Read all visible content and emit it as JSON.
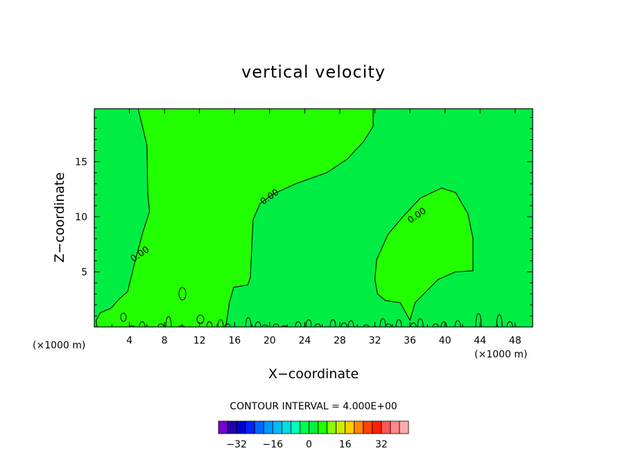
{
  "chart_data": {
    "type": "contour",
    "title": "vertical velocity",
    "xlabel": "X−coordinate",
    "ylabel": "Z−coordinate",
    "x_unit": "(×1000 m)",
    "xlim": [
      0,
      50
    ],
    "ylim": [
      0,
      19.8
    ],
    "x_ticks": [
      4,
      8,
      12,
      16,
      20,
      24,
      28,
      32,
      36,
      40,
      44,
      48
    ],
    "y_ticks": [
      5,
      10,
      15
    ],
    "contour_interval_text": "CONTOUR INTERVAL = 4.000E+00",
    "contour_label_text": "0.00",
    "contour_labels": [
      {
        "x": 5.2,
        "y": 6.6,
        "text": "0.00"
      },
      {
        "x": 20.0,
        "y": 11.8,
        "text": "0.00"
      },
      {
        "x": 36.8,
        "y": 10.1,
        "text": "0.00"
      }
    ],
    "background_color": "#00ee44",
    "positive_color": "#22ff00",
    "positive_regions": [
      {
        "name": "left-plume",
        "points": [
          [
            5.0,
            19.8
          ],
          [
            6.0,
            16.5
          ],
          [
            6.1,
            12.0
          ],
          [
            6.3,
            10.5
          ],
          [
            5.5,
            8.5
          ],
          [
            4.6,
            5.8
          ],
          [
            4.1,
            4.2
          ],
          [
            3.8,
            3.2
          ],
          [
            2.9,
            2.6
          ],
          [
            1.9,
            1.7
          ],
          [
            0.7,
            1.3
          ],
          [
            0.2,
            0.6
          ],
          [
            0.3,
            0.0
          ],
          [
            15.0,
            0.0
          ],
          [
            15.4,
            2.2
          ],
          [
            15.9,
            3.6
          ],
          [
            17.5,
            3.8
          ],
          [
            17.8,
            4.5
          ],
          [
            18.1,
            9.7
          ],
          [
            18.9,
            11.2
          ],
          [
            20.5,
            12.1
          ],
          [
            23.0,
            13.0
          ],
          [
            26.5,
            14.0
          ],
          [
            28.8,
            15.2
          ],
          [
            30.7,
            16.8
          ],
          [
            31.8,
            18.2
          ],
          [
            31.8,
            19.8
          ]
        ]
      },
      {
        "name": "right-bubble",
        "points": [
          [
            32.0,
            4.3
          ],
          [
            32.2,
            6.1
          ],
          [
            33.5,
            8.4
          ],
          [
            35.2,
            10.0
          ],
          [
            37.2,
            11.7
          ],
          [
            39.6,
            12.6
          ],
          [
            41.2,
            12.2
          ],
          [
            42.6,
            10.3
          ],
          [
            43.2,
            8.0
          ],
          [
            43.2,
            5.1
          ],
          [
            41.2,
            5.0
          ],
          [
            39.2,
            4.3
          ],
          [
            37.6,
            3.0
          ],
          [
            36.6,
            2.2
          ],
          [
            36.0,
            0.6
          ],
          [
            34.9,
            2.2
          ],
          [
            33.2,
            2.4
          ],
          [
            32.3,
            3.0
          ]
        ]
      }
    ],
    "colorbar": {
      "levels": [
        -36,
        -32,
        -28,
        -24,
        -20,
        -16,
        -12,
        -8,
        -4,
        0,
        4,
        8,
        12,
        16,
        20,
        24,
        28,
        32,
        36
      ],
      "colors": [
        "#7700cc",
        "#2200aa",
        "#0000cc",
        "#0022ff",
        "#0066ff",
        "#0099ff",
        "#00bbff",
        "#00dddd",
        "#00ffbb",
        "#00ff55",
        "#00ee44",
        "#22ff00",
        "#88ff00",
        "#ccee00",
        "#ffcc00",
        "#ff8800",
        "#ff4400",
        "#ff2200",
        "#ff5555",
        "#ff8888",
        "#ffaaaa"
      ],
      "tick_labels": [
        "−32",
        "−16",
        "0",
        "16",
        "32"
      ]
    }
  }
}
